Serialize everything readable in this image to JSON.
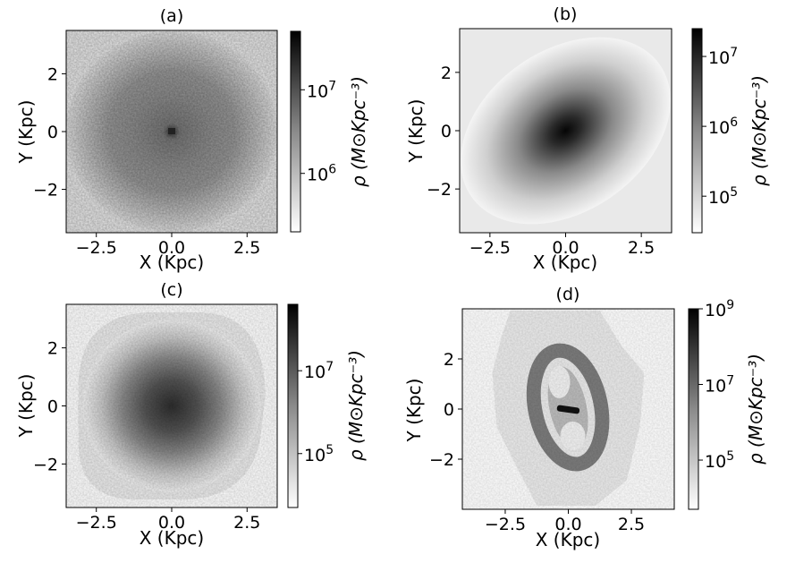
{
  "chart_data": [
    {
      "type": "heatmap",
      "title": "(a)",
      "xlabel": "X (Kpc)",
      "ylabel": "Y (Kpc)",
      "xlim": [
        -3.5,
        3.5
      ],
      "ylim": [
        -3.5,
        3.5
      ],
      "x_ticks": [
        -2.5,
        0.0,
        2.5
      ],
      "x_tick_labels": [
        "−2.5",
        "0.0",
        "2.5"
      ],
      "y_ticks": [
        -2,
        0,
        2
      ],
      "y_tick_labels": [
        "−2",
        "0",
        "2"
      ],
      "colorbar": {
        "label": "ρ (M⊙Kpc⁻³)",
        "scale": "log",
        "range": [
          200000,
          50000000
        ],
        "ticks": [
          1000000,
          10000000
        ],
        "tick_labels": [
          "10⁶",
          "10⁷"
        ]
      },
      "density_shape": {
        "kind": "ring",
        "center": [
          0.0,
          0.0
        ],
        "core_radius": 0.25,
        "ring_radius": 1.9,
        "orientation_deg": 0,
        "aspect": 1.0
      }
    },
    {
      "type": "heatmap",
      "title": "(b)",
      "xlabel": "X (Kpc)",
      "ylabel": "Y (Kpc)",
      "xlim": [
        -3.5,
        3.5
      ],
      "ylim": [
        -3.5,
        3.5
      ],
      "x_ticks": [
        -2.5,
        0.0,
        2.5
      ],
      "x_tick_labels": [
        "−2.5",
        "0.0",
        "2.5"
      ],
      "y_ticks": [
        -2,
        0,
        2
      ],
      "y_tick_labels": [
        "−2",
        "0",
        "2"
      ],
      "colorbar": {
        "label": "ρ (M⊙Kpc⁻³)",
        "scale": "log",
        "range": [
          30000,
          25000000
        ],
        "ticks": [
          100000,
          1000000,
          10000000
        ],
        "tick_labels": [
          "10⁵",
          "10⁶",
          "10⁷"
        ]
      },
      "density_shape": {
        "kind": "ellipse",
        "center": [
          0.0,
          0.0
        ],
        "core_radius": 1.6,
        "orientation_deg": 35,
        "aspect": 0.7
      }
    },
    {
      "type": "heatmap",
      "title": "(c)",
      "xlabel": "X (Kpc)",
      "ylabel": "Y (Kpc)",
      "xlim": [
        -3.5,
        3.5
      ],
      "ylim": [
        -3.5,
        3.5
      ],
      "x_ticks": [
        -2.5,
        0.0,
        2.5
      ],
      "x_tick_labels": [
        "−2.5",
        "0.0",
        "2.5"
      ],
      "y_ticks": [
        -2,
        0,
        2
      ],
      "y_tick_labels": [
        "−2",
        "0",
        "2"
      ],
      "colorbar": {
        "label": "ρ (M⊙Kpc⁻³)",
        "scale": "log",
        "range": [
          5000,
          400000000
        ],
        "ticks": [
          100000,
          10000000
        ],
        "tick_labels": [
          "10⁵",
          "10⁷"
        ]
      },
      "density_shape": {
        "kind": "blob",
        "center": [
          0.0,
          0.0
        ],
        "core_radius": 1.8,
        "orientation_deg": 0,
        "aspect": 1.0
      }
    },
    {
      "type": "heatmap",
      "title": "(d)",
      "xlabel": "X (Kpc)",
      "ylabel": "Y (Kpc)",
      "xlim": [
        -4.2,
        4.2
      ],
      "ylim": [
        -4.0,
        4.0
      ],
      "x_ticks": [
        -2.5,
        0.0,
        2.5
      ],
      "x_tick_labels": [
        "−2.5",
        "0.0",
        "2.5"
      ],
      "y_ticks": [
        -2,
        0,
        2
      ],
      "y_tick_labels": [
        "−2",
        "0",
        "2"
      ],
      "colorbar": {
        "label": "ρ (M⊙Kpc⁻³)",
        "scale": "log",
        "range": [
          5000,
          1000000000
        ],
        "ticks": [
          100000,
          10000000,
          1000000000
        ],
        "tick_labels": [
          "10⁵",
          "10⁷",
          "10⁹"
        ]
      },
      "density_shape": {
        "kind": "ring_bar",
        "center": [
          0.0,
          0.0
        ],
        "ring_radius_x": 1.3,
        "ring_radius_y": 2.3,
        "bar_length": 0.9,
        "orientation_deg": 0
      }
    }
  ]
}
